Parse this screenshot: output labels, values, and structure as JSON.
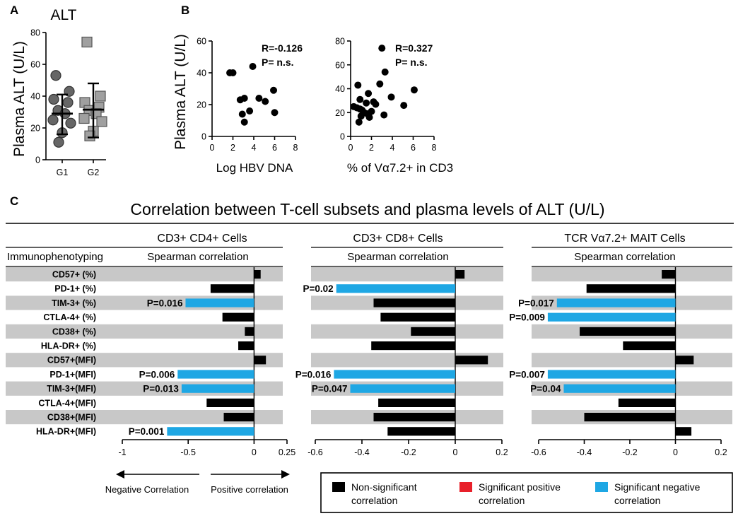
{
  "panel_a": {
    "letter": "A",
    "title": "ALT",
    "ylabel": "Plasma ALT (U/L)",
    "yticks": [
      "0",
      "20",
      "40",
      "60",
      "80"
    ]
  },
  "panel_b": {
    "letter": "B",
    "ylabel": "Plasma ALT (U/L)",
    "left": {
      "xlabel": "Log HBV DNA",
      "yticks": [
        "0",
        "20",
        "40",
        "60"
      ],
      "xticks": [
        "0",
        "2",
        "4",
        "6",
        "8"
      ],
      "r_text": "R=-0.126",
      "p_text": "P=  n.s."
    },
    "right": {
      "xlabel": "% of Vα7.2+ in CD3",
      "yticks": [
        "0",
        "20",
        "40",
        "60",
        "80"
      ],
      "xticks": [
        "0",
        "2",
        "4",
        "6",
        "8"
      ],
      "r_text": "R=0.327",
      "p_text": "P= n.s."
    }
  },
  "panel_c": {
    "letter": "C",
    "title": "Correlation between T-cell subsets and plasma levels of ALT (U/L)",
    "row_header": "Immunophenotyping",
    "sub_header": "Spearman correlation",
    "rows": [
      "CD57+ (%)",
      "PD-1+ (%)",
      "TIM-3+ (%)",
      "CTLA-4+ (%)",
      "CD38+ (%)",
      "HLA-DR+ (%)",
      "CD57+(MFI)",
      "PD-1+(MFI)",
      "TIM-3+(MFI)",
      "CTLA-4+(MFI)",
      "CD38+(MFI)",
      "HLA-DR+(MFI)"
    ],
    "columns": [
      {
        "header": "CD3+ CD4+ Cells",
        "xticks": [
          "-1",
          "-0.5",
          "0",
          "0.25"
        ]
      },
      {
        "header": "CD3+ CD8+ Cells",
        "xticks": [
          "-0.6",
          "-0.4",
          "-0.2",
          "0",
          "0.2"
        ]
      },
      {
        "header": "TCR Vα7.2+ MAIT Cells",
        "xticks": [
          "-0.6",
          "-0.4",
          "-0.2",
          "0",
          "0.2"
        ]
      }
    ],
    "arrows": {
      "negative": "Negative Correlation",
      "positive": "Positive correlation"
    }
  },
  "legend": {
    "items": [
      {
        "label_lines": [
          "Non-significant",
          "correlation"
        ],
        "color": "#000000"
      },
      {
        "label_lines": [
          "Significant positive",
          "correlation"
        ],
        "color": "#e8202a"
      },
      {
        "label_lines": [
          "Significant negative",
          "correlation"
        ],
        "color": "#1ea7e4"
      }
    ]
  },
  "chart_data": [
    {
      "type": "scatter",
      "panel": "A",
      "title": "ALT",
      "xlabel": "",
      "ylabel": "Plasma ALT (U/L)",
      "categories": [
        "G1",
        "G2"
      ],
      "ylim": [
        0,
        80
      ],
      "series": [
        {
          "name": "G1",
          "marker": "circle",
          "color": "#666666",
          "values": [
            53,
            43,
            38,
            36,
            31,
            29,
            25,
            23,
            17,
            11
          ],
          "mean": 29,
          "sd_low": 16,
          "sd_high": 41
        },
        {
          "name": "G2",
          "marker": "square",
          "color": "#a0a0a0",
          "values": [
            74,
            40,
            36,
            33,
            31,
            29,
            26,
            24,
            18,
            15
          ],
          "mean": 31.5,
          "sd_low": 14,
          "sd_high": 48
        }
      ]
    },
    {
      "type": "scatter",
      "panel": "B-left",
      "xlabel": "Log HBV DNA",
      "ylabel": "Plasma ALT (U/L)",
      "xlim": [
        0,
        8
      ],
      "ylim": [
        0,
        60
      ],
      "points": [
        {
          "x": 1.7,
          "y": 40
        },
        {
          "x": 2.0,
          "y": 40
        },
        {
          "x": 3.9,
          "y": 44
        },
        {
          "x": 5.9,
          "y": 29
        },
        {
          "x": 2.7,
          "y": 23
        },
        {
          "x": 3.1,
          "y": 24
        },
        {
          "x": 4.5,
          "y": 24
        },
        {
          "x": 5.1,
          "y": 22
        },
        {
          "x": 3.6,
          "y": 16
        },
        {
          "x": 2.9,
          "y": 14
        },
        {
          "x": 6.0,
          "y": 15
        },
        {
          "x": 3.1,
          "y": 9
        }
      ],
      "annotations": [
        "R=-0.126",
        "P=  n.s."
      ]
    },
    {
      "type": "scatter",
      "panel": "B-right",
      "xlabel": "% of Vα7.2+ in CD3",
      "ylabel": "Plasma ALT (U/L)",
      "xlim": [
        0,
        8
      ],
      "ylim": [
        0,
        80
      ],
      "points": [
        {
          "x": 3.0,
          "y": 74
        },
        {
          "x": 3.3,
          "y": 54
        },
        {
          "x": 2.8,
          "y": 44
        },
        {
          "x": 0.7,
          "y": 43
        },
        {
          "x": 6.1,
          "y": 39
        },
        {
          "x": 1.7,
          "y": 36
        },
        {
          "x": 3.9,
          "y": 33
        },
        {
          "x": 0.9,
          "y": 31
        },
        {
          "x": 2.2,
          "y": 29
        },
        {
          "x": 1.5,
          "y": 28
        },
        {
          "x": 2.4,
          "y": 27
        },
        {
          "x": 5.1,
          "y": 26
        },
        {
          "x": 0.3,
          "y": 25
        },
        {
          "x": 0.6,
          "y": 24
        },
        {
          "x": 0.9,
          "y": 23
        },
        {
          "x": 1.1,
          "y": 22
        },
        {
          "x": 2.0,
          "y": 21
        },
        {
          "x": 1.3,
          "y": 20
        },
        {
          "x": 1.6,
          "y": 19
        },
        {
          "x": 3.2,
          "y": 18
        },
        {
          "x": 1.0,
          "y": 17
        },
        {
          "x": 1.8,
          "y": 16
        },
        {
          "x": 0.8,
          "y": 12
        }
      ],
      "annotations": [
        "R=0.327",
        "P= n.s."
      ]
    },
    {
      "type": "bar",
      "orientation": "horizontal",
      "panel": "C-CD4",
      "title": "CD3+ CD4+ Cells",
      "xlabel": "Spearman correlation",
      "xlim": [
        -1,
        0.25
      ],
      "categories": [
        "CD57+ (%)",
        "PD-1+ (%)",
        "TIM-3+ (%)",
        "CTLA-4+ (%)",
        "CD38+ (%)",
        "HLA-DR+ (%)",
        "CD57+(MFI)",
        "PD-1+(MFI)",
        "TIM-3+(MFI)",
        "CTLA-4+(MFI)",
        "CD38+(MFI)",
        "HLA-DR+(MFI)"
      ],
      "values": [
        0.05,
        -0.33,
        -0.52,
        -0.24,
        -0.07,
        -0.12,
        0.09,
        -0.58,
        -0.55,
        -0.36,
        -0.23,
        -0.66
      ],
      "significant": [
        false,
        false,
        true,
        false,
        false,
        false,
        false,
        true,
        true,
        false,
        false,
        true
      ],
      "p_labels": [
        "",
        "",
        "P=0.016",
        "",
        "",
        "",
        "",
        "P=0.006",
        "P=0.013",
        "",
        "",
        "P=0.001"
      ]
    },
    {
      "type": "bar",
      "orientation": "horizontal",
      "panel": "C-CD8",
      "title": "CD3+ CD8+ Cells",
      "xlabel": "Spearman correlation",
      "xlim": [
        -0.6,
        0.2
      ],
      "categories": [
        "CD57+ (%)",
        "PD-1+ (%)",
        "TIM-3+ (%)",
        "CTLA-4+ (%)",
        "CD38+ (%)",
        "HLA-DR+ (%)",
        "CD57+(MFI)",
        "PD-1+(MFI)",
        "TIM-3+(MFI)",
        "CTLA-4+(MFI)",
        "CD38+(MFI)",
        "HLA-DR+(MFI)"
      ],
      "values": [
        0.04,
        -0.51,
        -0.35,
        -0.32,
        -0.19,
        -0.36,
        0.14,
        -0.52,
        -0.45,
        -0.33,
        -0.35,
        -0.29
      ],
      "significant": [
        false,
        true,
        false,
        false,
        false,
        false,
        false,
        true,
        true,
        false,
        false,
        false
      ],
      "p_labels": [
        "",
        "P=0.02",
        "",
        "",
        "",
        "",
        "",
        "P=0.016",
        "P=0.047",
        "",
        "",
        ""
      ]
    },
    {
      "type": "bar",
      "orientation": "horizontal",
      "panel": "C-MAIT",
      "title": "TCR Vα7.2+ MAIT Cells",
      "xlabel": "Spearman correlation",
      "xlim": [
        -0.6,
        0.2
      ],
      "categories": [
        "CD57+ (%)",
        "PD-1+ (%)",
        "TIM-3+ (%)",
        "CTLA-4+ (%)",
        "CD38+ (%)",
        "HLA-DR+ (%)",
        "CD57+(MFI)",
        "PD-1+(MFI)",
        "TIM-3+(MFI)",
        "CTLA-4+(MFI)",
        "CD38+(MFI)",
        "HLA-DR+(MFI)"
      ],
      "values": [
        -0.06,
        -0.39,
        -0.52,
        -0.56,
        -0.42,
        -0.23,
        0.08,
        -0.56,
        -0.49,
        -0.25,
        -0.4,
        0.07
      ],
      "significant": [
        false,
        false,
        true,
        true,
        false,
        false,
        false,
        true,
        true,
        false,
        false,
        false
      ],
      "p_labels": [
        "",
        "",
        "P=0.017",
        "P=0.009",
        "",
        "",
        "",
        "P=0.007",
        "P=0.04",
        "",
        "",
        ""
      ]
    }
  ]
}
